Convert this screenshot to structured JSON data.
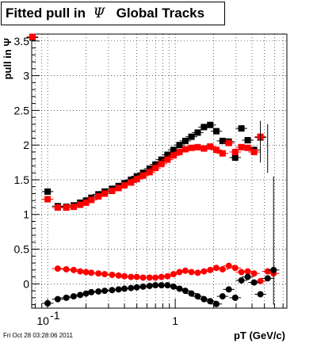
{
  "title": {
    "prefix": "Fitted pull in",
    "symbol": "Ψ",
    "suffix": "Global Tracks"
  },
  "timestamp": "Fri Oct 28 03:28:06 2011",
  "chart_data": {
    "type": "scatter",
    "xlabel": "pT (GeV/c)",
    "ylabel": "pull in Ψ",
    "xscale": "log",
    "xlim": [
      0.075,
      7.5
    ],
    "ylim": [
      -0.35,
      3.6
    ],
    "grid": true,
    "x_ticks": [
      {
        "value": 0.1,
        "label": "10",
        "exp": "-1"
      },
      {
        "value": 1,
        "label": "1",
        "exp": ""
      }
    ],
    "y_ticks": [
      {
        "value": 0,
        "label": "0"
      },
      {
        "value": 0.5,
        "label": "0.5"
      },
      {
        "value": 1,
        "label": "1"
      },
      {
        "value": 1.5,
        "label": "1.5"
      },
      {
        "value": 2,
        "label": "2"
      },
      {
        "value": 2.5,
        "label": "2.5"
      },
      {
        "value": 3,
        "label": "3"
      },
      {
        "value": 3.5,
        "label": "3.5"
      }
    ],
    "colors": {
      "black": "#000000",
      "red": "#ff0000"
    },
    "series": [
      {
        "marker": "square",
        "color": "black",
        "x": [
          0.076,
          0.1,
          0.12,
          0.14,
          0.16,
          0.18,
          0.2,
          0.22,
          0.25,
          0.28,
          0.32,
          0.36,
          0.4,
          0.45,
          0.5,
          0.56,
          0.63,
          0.7,
          0.78,
          0.87,
          0.97,
          1.08,
          1.2,
          1.34,
          1.5,
          1.68,
          1.88,
          2.1,
          2.35,
          2.63,
          2.95,
          3.3,
          3.7,
          4.15,
          4.65
        ],
        "y": [
          3.55,
          1.33,
          1.12,
          1.11,
          1.13,
          1.17,
          1.2,
          1.24,
          1.29,
          1.33,
          1.37,
          1.41,
          1.45,
          1.5,
          1.55,
          1.6,
          1.66,
          1.72,
          1.79,
          1.86,
          1.93,
          2.0,
          2.06,
          2.12,
          2.18,
          2.26,
          2.29,
          2.2,
          2.06,
          2.05,
          1.82,
          2.24,
          2.07,
          1.93,
          2.11
        ]
      },
      {
        "marker": "square",
        "color": "red",
        "x": [
          0.076,
          0.1,
          0.12,
          0.14,
          0.16,
          0.18,
          0.2,
          0.22,
          0.25,
          0.28,
          0.32,
          0.36,
          0.4,
          0.45,
          0.5,
          0.56,
          0.63,
          0.7,
          0.78,
          0.87,
          0.97,
          1.08,
          1.2,
          1.34,
          1.5,
          1.68,
          1.88,
          2.1,
          2.35,
          2.63,
          2.95,
          3.3,
          3.7,
          4.15,
          4.65
        ],
        "y": [
          3.56,
          1.22,
          1.1,
          1.1,
          1.11,
          1.14,
          1.17,
          1.21,
          1.26,
          1.3,
          1.34,
          1.38,
          1.42,
          1.46,
          1.51,
          1.56,
          1.61,
          1.67,
          1.73,
          1.79,
          1.85,
          1.9,
          1.94,
          1.96,
          1.97,
          1.95,
          1.98,
          1.93,
          1.88,
          2.03,
          1.9,
          1.97,
          1.96,
          1.9,
          2.12
        ]
      },
      {
        "marker": "circle",
        "color": "red",
        "x": [
          0.12,
          0.14,
          0.16,
          0.18,
          0.2,
          0.22,
          0.25,
          0.28,
          0.32,
          0.36,
          0.4,
          0.45,
          0.5,
          0.56,
          0.63,
          0.7,
          0.78,
          0.87,
          0.97,
          1.08,
          1.2,
          1.34,
          1.5,
          1.68,
          1.88,
          2.1,
          2.35,
          2.63,
          2.95,
          3.3,
          3.7,
          4.15,
          4.65,
          5.3,
          5.9
        ],
        "y": [
          0.22,
          0.21,
          0.2,
          0.18,
          0.17,
          0.16,
          0.15,
          0.14,
          0.13,
          0.12,
          0.11,
          0.1,
          0.1,
          0.09,
          0.09,
          0.09,
          0.1,
          0.11,
          0.14,
          0.17,
          0.19,
          0.17,
          0.16,
          0.18,
          0.2,
          0.23,
          0.21,
          0.26,
          0.23,
          0.17,
          0.18,
          0.15,
          0.04,
          0.18,
          0.15
        ]
      },
      {
        "marker": "circle",
        "color": "black",
        "x": [
          0.1,
          0.12,
          0.14,
          0.16,
          0.18,
          0.2,
          0.22,
          0.25,
          0.28,
          0.32,
          0.36,
          0.4,
          0.45,
          0.5,
          0.56,
          0.63,
          0.7,
          0.78,
          0.87,
          0.97,
          1.08,
          1.2,
          1.34,
          1.5,
          1.68,
          1.88,
          2.1,
          2.35,
          2.63,
          2.95,
          3.3,
          3.7,
          4.15,
          4.65,
          5.3,
          5.9
        ],
        "y": [
          -0.28,
          -0.22,
          -0.2,
          -0.18,
          -0.16,
          -0.14,
          -0.12,
          -0.11,
          -0.1,
          -0.09,
          -0.08,
          -0.07,
          -0.06,
          -0.05,
          -0.04,
          -0.03,
          -0.02,
          -0.02,
          -0.02,
          -0.04,
          -0.07,
          -0.1,
          -0.14,
          -0.18,
          -0.22,
          -0.25,
          -0.29,
          -0.18,
          -0.08,
          -0.2,
          0.05,
          0.1,
          0.02,
          -0.15,
          0.08,
          0.2
        ]
      }
    ]
  }
}
